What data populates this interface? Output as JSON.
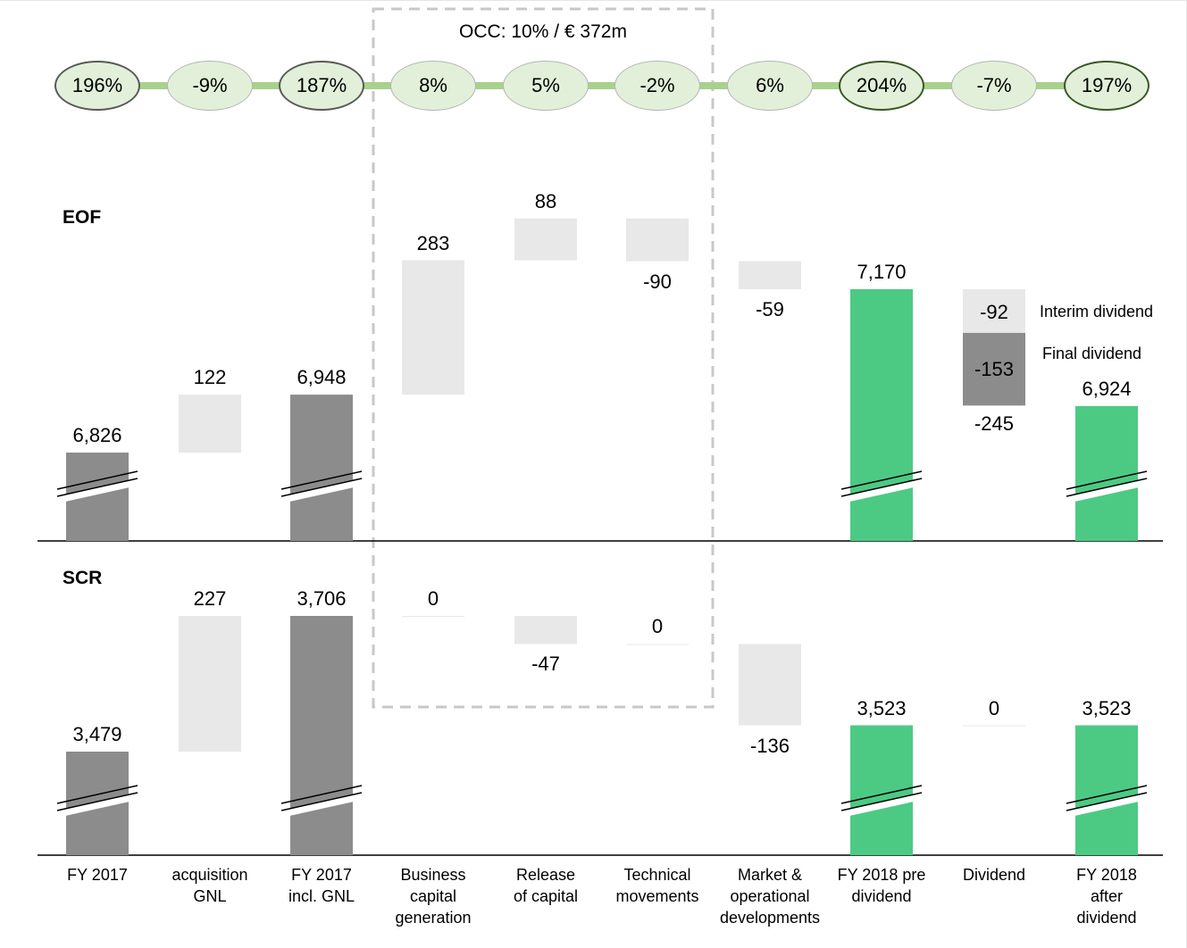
{
  "chart_data": {
    "type": "waterfall",
    "categories": [
      "FY 2017",
      "acquisition\nGNL",
      "FY 2017\nincl. GNL",
      "Business\ncapital\ngeneration",
      "Release\nof capital",
      "Technical\nmovements",
      "Market &\noperational\ndevelopments",
      "FY 2018 pre\ndividend",
      "Dividend",
      "FY 2018\nafter\ndividend"
    ],
    "solvency_ratios": [
      "196%",
      "-9%",
      "187%",
      "8%",
      "5%",
      "-2%",
      "6%",
      "204%",
      "-7%",
      "197%"
    ],
    "occ_label": "OCC: 10% / € 372m",
    "eof": {
      "label": "EOF",
      "values": [
        6826,
        122,
        6948,
        283,
        88,
        -90,
        -59,
        7170,
        -245,
        6924
      ],
      "value_labels": [
        "6,826",
        "122",
        "6,948",
        "283",
        "88",
        "-90",
        "-59",
        "7,170",
        "-245",
        "6,924"
      ],
      "dividend_split": {
        "interim": {
          "value": -92,
          "label": "-92",
          "name": "Interim dividend"
        },
        "final": {
          "value": -153,
          "label": "-153",
          "name": "Final dividend"
        }
      }
    },
    "scr": {
      "label": "SCR",
      "values": [
        3479,
        227,
        3706,
        0,
        -47,
        0,
        -136,
        3523,
        0,
        3523
      ],
      "value_labels": [
        "3,479",
        "227",
        "3,706",
        "0",
        "-47",
        "0",
        "-136",
        "3,523",
        "0",
        "3,523"
      ]
    },
    "colors": {
      "total_grey": "#8c8c8c",
      "delta_light": "#e8e8e8",
      "final_dividend": "#8c8c8c",
      "total_green": "#4cca84",
      "ratio_fill": "#e2f0d9",
      "ratio_line": "#a9d18e",
      "ratio_border_dark": "#385723",
      "occ_box": "#c8c8c8"
    }
  }
}
